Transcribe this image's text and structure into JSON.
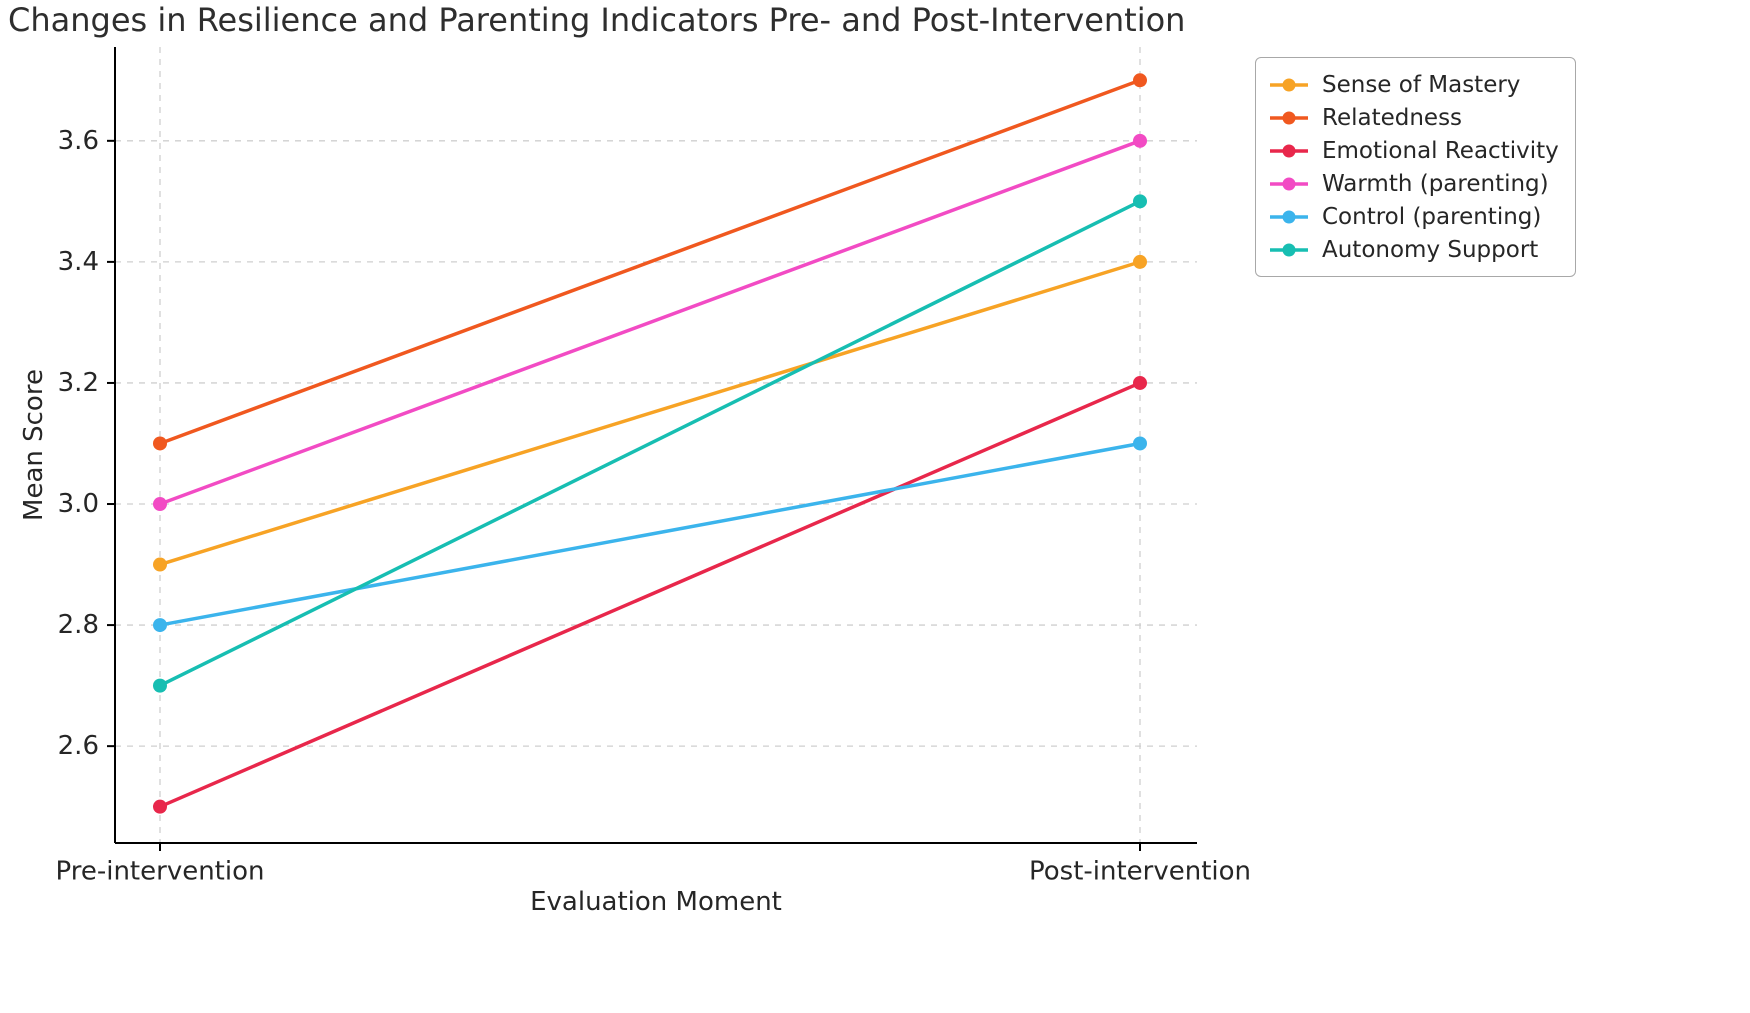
{
  "chart_data": {
    "type": "line",
    "title": "Changes in Resilience and Parenting Indicators Pre- and Post-Intervention",
    "xlabel": "Evaluation Moment",
    "ylabel": "Mean Score",
    "categories": [
      "Pre-intervention",
      "Post-intervention"
    ],
    "yticks": [
      {
        "value": 2.6,
        "label": "2.6"
      },
      {
        "value": 2.8,
        "label": "2.8"
      },
      {
        "value": 3.0,
        "label": "3.0"
      },
      {
        "value": 3.2,
        "label": "3.2"
      },
      {
        "value": 3.4,
        "label": "3.4"
      },
      {
        "value": 3.6,
        "label": "3.6"
      }
    ],
    "ylim": [
      2.44,
      3.755
    ],
    "grid": "dashed horizontal at y ticks and vertical at category positions",
    "legend_position": "upper right",
    "series": [
      {
        "name": "Sense of Mastery",
        "color": "#F7A325",
        "values": [
          2.9,
          3.4
        ]
      },
      {
        "name": "Relatedness",
        "color": "#F0581F",
        "values": [
          3.1,
          3.7
        ]
      },
      {
        "name": "Emotional Reactivity",
        "color": "#E8274B",
        "values": [
          2.5,
          3.2
        ]
      },
      {
        "name": "Warmth (parenting)",
        "color": "#F24BC4",
        "values": [
          3.0,
          3.6
        ]
      },
      {
        "name": "Control (parenting)",
        "color": "#3BB4EC",
        "values": [
          2.8,
          3.1
        ]
      },
      {
        "name": "Autonomy Support",
        "color": "#17BEB2",
        "values": [
          2.7,
          3.5
        ]
      }
    ]
  }
}
